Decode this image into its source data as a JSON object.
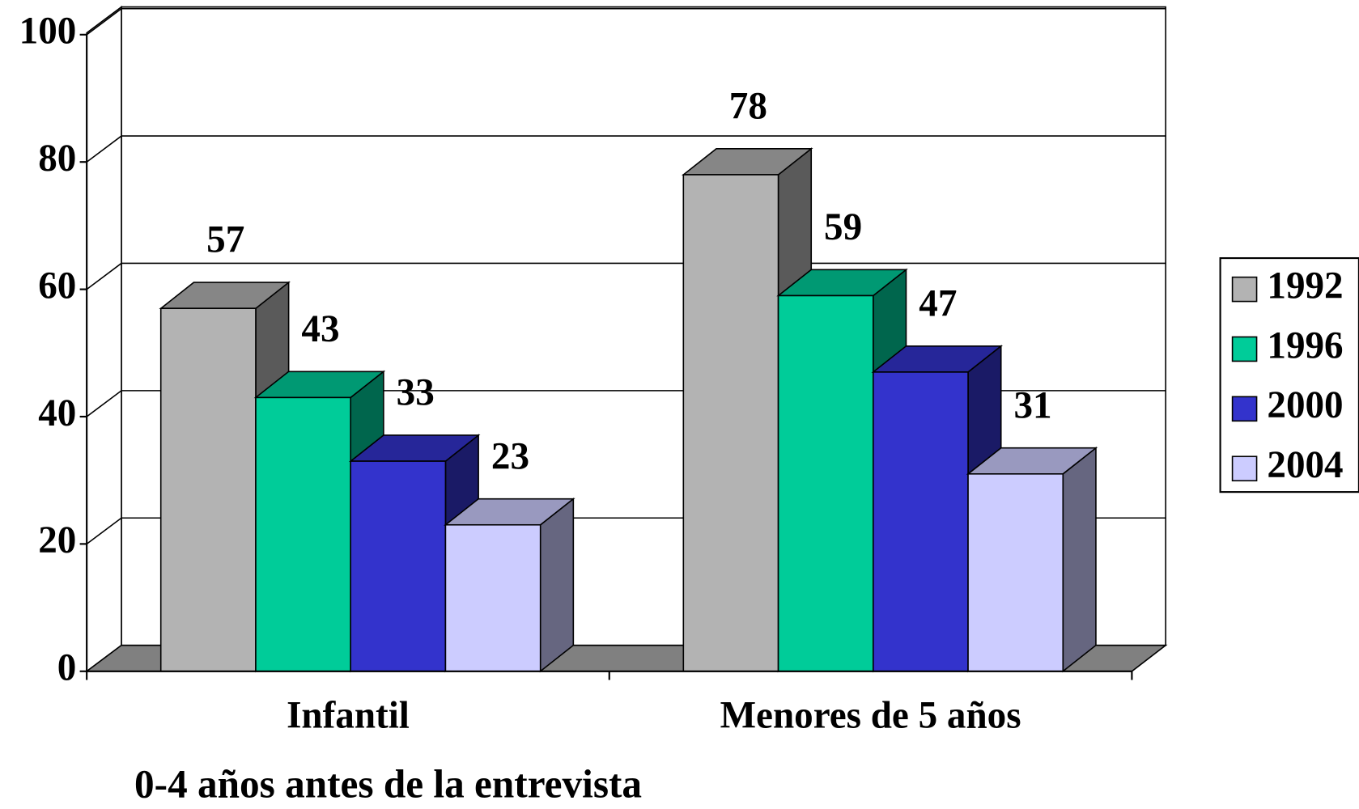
{
  "chart_data": {
    "type": "bar3d",
    "categories": [
      "Infantil",
      "Menores de 5 años"
    ],
    "xlabel": "0-4 años antes de la entrevista",
    "series": [
      {
        "name": "1992",
        "color": "#b3b3b3",
        "values": [
          57,
          78
        ]
      },
      {
        "name": "1996",
        "color": "#00cc99",
        "values": [
          43,
          59
        ]
      },
      {
        "name": "2000",
        "color": "#3333cc",
        "values": [
          33,
          47
        ]
      },
      {
        "name": "2004",
        "color": "#ccccff",
        "values": [
          23,
          31
        ]
      }
    ],
    "ylim": [
      0,
      100
    ],
    "yticks": [
      0,
      20,
      40,
      60,
      80,
      100
    ],
    "grid": true,
    "legend": "right"
  }
}
